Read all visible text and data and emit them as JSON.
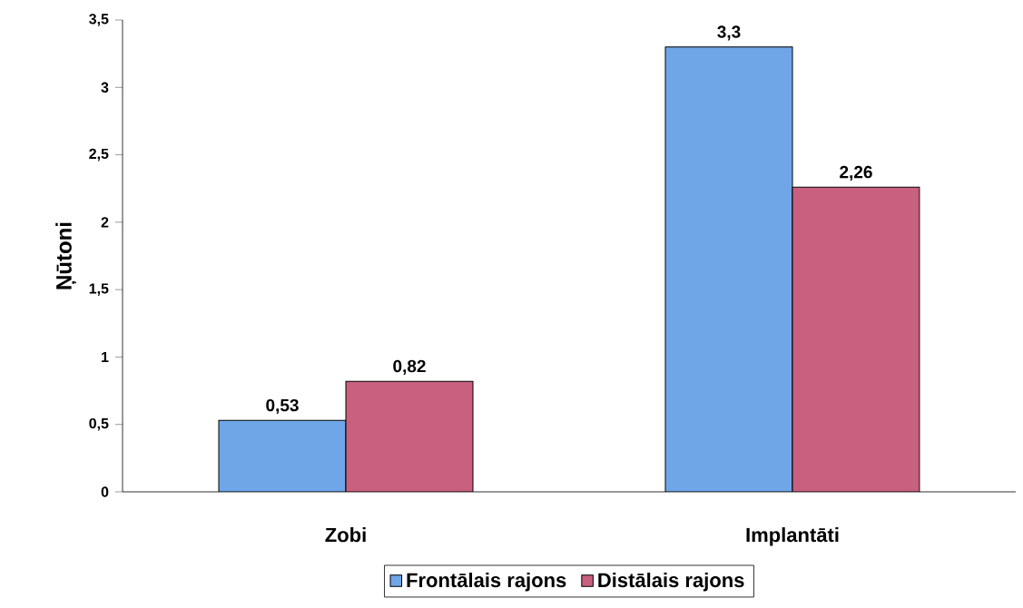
{
  "chart_data": {
    "type": "bar",
    "ylabel": "Ņūtoni",
    "categories": [
      "Zobi",
      "Implantāti"
    ],
    "series": [
      {
        "name": "Frontālais rajons",
        "color": "#6fa6e8",
        "values": [
          0.53,
          3.3
        ],
        "value_labels": [
          "0,53",
          "3,3"
        ]
      },
      {
        "name": "Distālais rajons",
        "color": "#c8607f",
        "values": [
          0.82,
          2.26
        ],
        "value_labels": [
          "0,82",
          "2,26"
        ]
      }
    ],
    "ylim": [
      0,
      3.5
    ],
    "yticks": [
      0,
      {
        "value": 0.5,
        "label": "0,5"
      },
      1,
      {
        "value": 1.5,
        "label": "1,5"
      },
      2,
      {
        "value": 2.5,
        "label": "2,5"
      },
      3,
      {
        "value": 3.5,
        "label": "3,5"
      }
    ],
    "legend": "bottom"
  }
}
